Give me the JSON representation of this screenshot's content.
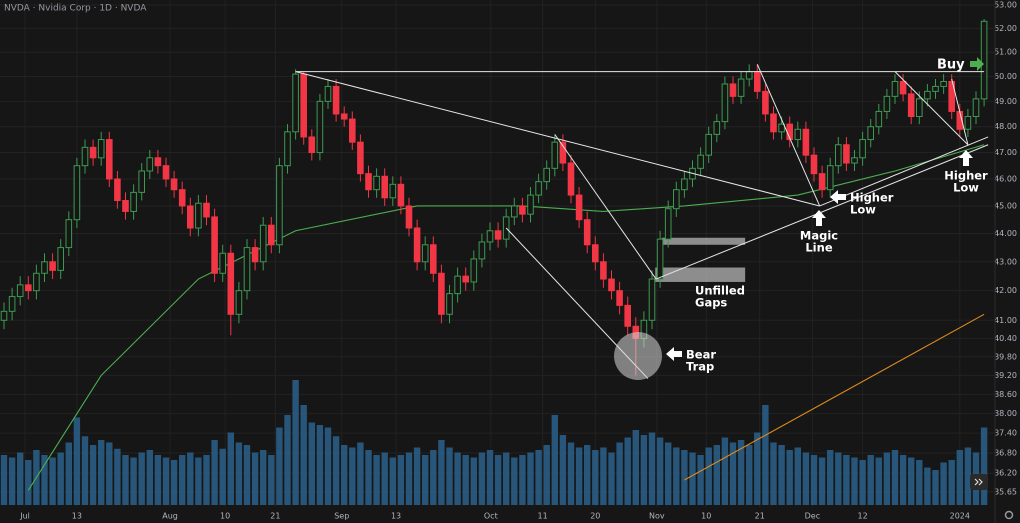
{
  "chart_data": {
    "type": "candlestick",
    "title": "NVDA · Nvidia Corp · 1D · NVDA",
    "log_scale": true,
    "grid": true,
    "up_color": "#3d9a50",
    "down_color": "#f23645",
    "volume_color": "#2a628c",
    "ylim": [
      35.65,
      53
    ],
    "yticks": [
      {
        "value": 53,
        "label": "53.00"
      },
      {
        "value": 52,
        "label": "52.00"
      },
      {
        "value": 51,
        "label": "51.00"
      },
      {
        "value": 50,
        "label": "50.00"
      },
      {
        "value": 49,
        "label": "49.00"
      },
      {
        "value": 48,
        "label": "48.00"
      },
      {
        "value": 47,
        "label": "47.00"
      },
      {
        "value": 46,
        "label": "46.00"
      },
      {
        "value": 45,
        "label": "45.00"
      },
      {
        "value": 44,
        "label": "44.00"
      },
      {
        "value": 43,
        "label": "43.00"
      },
      {
        "value": 42,
        "label": "42.00"
      },
      {
        "value": 41,
        "label": "41.00"
      },
      {
        "value": 40.4,
        "label": "40.40"
      },
      {
        "value": 39.8,
        "label": "39.80"
      },
      {
        "value": 39.2,
        "label": "39.20"
      },
      {
        "value": 38.6,
        "label": "38.60"
      },
      {
        "value": 38,
        "label": "38.00"
      },
      {
        "value": 37.4,
        "label": "37.40"
      },
      {
        "value": 36.8,
        "label": "36.80"
      },
      {
        "value": 36.2,
        "label": "36.20"
      },
      {
        "value": 35.65,
        "label": "35.65"
      }
    ],
    "xticks": [
      {
        "value": 2.6,
        "label": "Jul"
      },
      {
        "value": 9,
        "label": "13"
      },
      {
        "value": 20.5,
        "label": "Aug"
      },
      {
        "value": 27.3,
        "label": "10"
      },
      {
        "value": 33.5,
        "label": "21"
      },
      {
        "value": 41.7,
        "label": "Sep"
      },
      {
        "value": 48.4,
        "label": "13"
      },
      {
        "value": 60.1,
        "label": "Oct"
      },
      {
        "value": 66.5,
        "label": "11"
      },
      {
        "value": 73,
        "label": "20"
      },
      {
        "value": 80.6,
        "label": "Nov"
      },
      {
        "value": 86.7,
        "label": "10"
      },
      {
        "value": 93.3,
        "label": "21"
      },
      {
        "value": 99.8,
        "label": "Dec"
      },
      {
        "value": 106,
        "label": "12"
      },
      {
        "value": 118,
        "label": "2024"
      }
    ],
    "candles": {
      "open": [
        41.0,
        41.3,
        41.8,
        42.2,
        42.0,
        42.6,
        43.0,
        42.7,
        43.5,
        44.5,
        46.5,
        47.2,
        46.8,
        47.5,
        46.0,
        45.2,
        44.8,
        45.5,
        46.3,
        46.8,
        46.5,
        46.0,
        45.6,
        45.0,
        44.2,
        45.1,
        44.6,
        42.6,
        43.3,
        41.2,
        42.0,
        43.5,
        43.0,
        44.3,
        43.6,
        46.5,
        47.8,
        50.1,
        47.6,
        47.0,
        49.0,
        49.6,
        48.5,
        48.3,
        47.4,
        46.2,
        45.6,
        46.1,
        45.3,
        45.8,
        45.0,
        44.2,
        43.0,
        43.6,
        42.6,
        41.2,
        41.9,
        42.5,
        42.3,
        43.1,
        43.7,
        44.1,
        43.8,
        44.6,
        45.0,
        44.7,
        45.4,
        45.9,
        46.4,
        47.4,
        46.6,
        45.4,
        44.5,
        43.6,
        43.0,
        42.4,
        42.0,
        41.5,
        40.8,
        40.4,
        41.0,
        42.4,
        43.8,
        44.9,
        45.6,
        46.0,
        46.4,
        46.9,
        47.7,
        48.2,
        49.7,
        49.2,
        49.9,
        50.2,
        49.4,
        48.5,
        47.8,
        48.1,
        47.5,
        47.9,
        46.9,
        46.2,
        45.6,
        46.5,
        47.3,
        46.6,
        46.8,
        47.5,
        48.0,
        48.6,
        49.2,
        49.8,
        49.3,
        48.4,
        49.1,
        49.4,
        49.6,
        49.8,
        48.6,
        47.9,
        48.4,
        49.1
      ],
      "high": [
        41.6,
        42.1,
        42.5,
        42.5,
        42.9,
        43.3,
        43.3,
        43.8,
        44.8,
        46.8,
        47.5,
        47.5,
        47.8,
        47.8,
        46.3,
        45.5,
        45.8,
        46.6,
        47.1,
        47.1,
        46.8,
        46.3,
        45.9,
        45.3,
        45.4,
        45.4,
        44.9,
        43.6,
        43.6,
        42.3,
        43.8,
        43.8,
        44.6,
        44.6,
        46.8,
        48.1,
        50.3,
        50.2,
        47.9,
        49.3,
        49.9,
        49.9,
        48.8,
        48.6,
        47.7,
        46.5,
        46.4,
        46.4,
        46.1,
        46.1,
        45.3,
        44.5,
        43.9,
        43.9,
        42.9,
        42.2,
        42.8,
        42.8,
        43.4,
        44.0,
        44.4,
        44.4,
        44.9,
        45.3,
        45.3,
        45.7,
        46.2,
        46.7,
        47.7,
        47.7,
        46.9,
        45.7,
        44.8,
        43.9,
        43.3,
        42.7,
        42.3,
        41.8,
        41.1,
        41.3,
        42.7,
        44.1,
        45.2,
        45.9,
        46.3,
        46.7,
        47.2,
        48.0,
        48.5,
        50.0,
        50.0,
        50.2,
        50.5,
        50.5,
        49.7,
        48.8,
        48.4,
        48.4,
        48.2,
        48.2,
        47.2,
        46.5,
        46.8,
        47.6,
        47.6,
        47.1,
        47.8,
        48.3,
        48.9,
        49.5,
        50.1,
        50.1,
        49.6,
        49.4,
        49.7,
        49.9,
        50.1,
        50.1,
        48.9,
        48.7,
        49.4,
        52.4
      ],
      "low": [
        40.7,
        41.0,
        41.5,
        41.7,
        41.7,
        42.3,
        42.4,
        42.4,
        43.2,
        44.2,
        46.2,
        46.5,
        46.5,
        45.7,
        44.9,
        44.5,
        44.5,
        45.2,
        46.0,
        46.2,
        45.7,
        45.3,
        44.7,
        43.9,
        43.9,
        44.3,
        42.3,
        42.3,
        40.5,
        40.9,
        41.7,
        42.7,
        42.7,
        43.3,
        43.3,
        46.2,
        47.5,
        47.3,
        46.7,
        46.7,
        48.7,
        48.2,
        48.0,
        47.1,
        45.9,
        45.3,
        45.3,
        45.0,
        45.0,
        44.7,
        43.9,
        42.7,
        42.7,
        42.3,
        40.9,
        40.9,
        41.6,
        42.0,
        42.0,
        42.8,
        43.4,
        43.5,
        43.5,
        44.3,
        44.4,
        44.4,
        45.1,
        45.6,
        46.1,
        46.3,
        45.1,
        44.2,
        43.3,
        42.7,
        42.1,
        41.7,
        41.2,
        40.5,
        39.2,
        40.1,
        40.7,
        42.1,
        43.5,
        44.6,
        45.3,
        45.7,
        46.1,
        46.6,
        47.4,
        47.9,
        48.9,
        48.9,
        49.6,
        49.1,
        48.2,
        47.5,
        47.5,
        47.2,
        47.2,
        46.6,
        45.9,
        45.3,
        45.3,
        46.2,
        46.3,
        46.3,
        46.5,
        47.2,
        47.7,
        48.3,
        48.9,
        49.0,
        48.1,
        48.1,
        48.8,
        49.1,
        49.3,
        48.3,
        47.6,
        47.6,
        48.1,
        48.8
      ],
      "close": [
        41.3,
        41.8,
        42.2,
        42.0,
        42.6,
        43.0,
        42.7,
        43.5,
        44.5,
        46.5,
        47.2,
        46.8,
        47.5,
        46.0,
        45.2,
        44.8,
        45.5,
        46.3,
        46.8,
        46.5,
        46.0,
        45.6,
        45.0,
        44.2,
        45.1,
        44.6,
        42.6,
        43.3,
        41.2,
        42.0,
        43.5,
        43.0,
        44.3,
        43.6,
        46.5,
        47.8,
        50.1,
        47.6,
        47.0,
        49.0,
        49.6,
        48.5,
        48.3,
        47.4,
        46.2,
        45.6,
        46.1,
        45.3,
        45.8,
        45.0,
        44.2,
        43.0,
        43.6,
        42.6,
        41.2,
        41.9,
        42.5,
        42.3,
        43.1,
        43.7,
        44.1,
        43.8,
        44.6,
        45.0,
        44.7,
        45.4,
        45.9,
        46.4,
        47.4,
        46.6,
        45.4,
        44.5,
        43.6,
        43.0,
        42.4,
        42.0,
        41.5,
        40.8,
        40.4,
        41.0,
        42.4,
        43.8,
        44.9,
        45.6,
        46.0,
        46.4,
        46.9,
        47.7,
        48.2,
        49.7,
        49.2,
        49.9,
        50.2,
        49.4,
        48.5,
        47.8,
        48.1,
        47.5,
        47.9,
        46.9,
        46.2,
        45.6,
        46.5,
        47.3,
        46.6,
        46.8,
        47.5,
        48.0,
        48.6,
        49.2,
        49.8,
        49.3,
        48.4,
        49.1,
        49.4,
        49.6,
        49.8,
        48.6,
        47.9,
        48.4,
        49.1,
        52.3
      ],
      "volume": [
        40,
        38,
        42,
        36,
        44,
        40,
        38,
        42,
        50,
        70,
        55,
        48,
        52,
        50,
        45,
        40,
        38,
        42,
        44,
        40,
        38,
        36,
        40,
        42,
        38,
        40,
        52,
        45,
        58,
        50,
        48,
        42,
        44,
        40,
        62,
        72,
        100,
        80,
        66,
        64,
        62,
        55,
        48,
        46,
        50,
        44,
        40,
        42,
        38,
        40,
        42,
        46,
        40,
        44,
        52,
        46,
        42,
        40,
        38,
        42,
        44,
        40,
        42,
        38,
        40,
        42,
        44,
        48,
        72,
        56,
        50,
        46,
        48,
        44,
        46,
        42,
        50,
        54,
        60,
        56,
        58,
        54,
        50,
        46,
        44,
        42,
        40,
        46,
        48,
        54,
        50,
        52,
        48,
        58,
        80,
        50,
        48,
        44,
        46,
        42,
        40,
        38,
        44,
        42,
        40,
        38,
        36,
        40,
        38,
        42,
        44,
        40,
        38,
        36,
        30,
        28,
        34,
        36,
        44,
        46,
        42,
        62
      ]
    },
    "moving_averages": [
      {
        "color": "#4caf50",
        "x": [
          3,
          12,
          24,
          36,
          51,
          64,
          74,
          84,
          98,
          110,
          121
        ],
        "values": [
          35.7,
          39.2,
          42.4,
          44.1,
          45.0,
          45.0,
          44.8,
          45.0,
          45.4,
          46.3,
          47.3
        ]
      },
      {
        "color": "#e08a1e",
        "x": [
          84,
          121
        ],
        "values": [
          36.0,
          41.2
        ]
      }
    ],
    "trendlines": [
      {
        "x": [
          36,
          121
        ],
        "values": [
          50.2,
          50.2
        ]
      },
      {
        "x": [
          36,
          100.7
        ],
        "values": [
          50.2,
          45.0
        ]
      },
      {
        "x": [
          62,
          79.5
        ],
        "values": [
          44.2,
          39.1
        ]
      },
      {
        "x": [
          68,
          80.5
        ],
        "values": [
          47.7,
          42.4
        ]
      },
      {
        "x": [
          80.5,
          121.5
        ],
        "values": [
          42.4,
          47.3
        ]
      },
      {
        "x": [
          100.7,
          121.5
        ],
        "values": [
          45.0,
          47.6
        ]
      },
      {
        "x": [
          93,
          100.7
        ],
        "values": [
          50.5,
          45.0
        ]
      },
      {
        "x": [
          110,
          119
        ],
        "values": [
          50.2,
          47.3
        ]
      },
      {
        "x": [
          117,
          119
        ],
        "values": [
          49.9,
          47.3
        ]
      }
    ],
    "gaps": [
      {
        "x": [
          81.2,
          91.5
        ],
        "values": [
          43.6,
          43.85
        ]
      },
      {
        "x": [
          80.4,
          91.5
        ],
        "values": [
          42.3,
          42.8
        ]
      }
    ],
    "annotations": {
      "buy": "Buy",
      "magic_line": [
        "Magic",
        "Line"
      ],
      "higher_low_1": [
        "Higher",
        "Low"
      ],
      "higher_low_2": [
        "Higher",
        "Low"
      ],
      "unfilled_gaps": [
        "Unfilled",
        "Gaps"
      ],
      "bear_trap": [
        "Bear",
        "Trap"
      ]
    }
  }
}
